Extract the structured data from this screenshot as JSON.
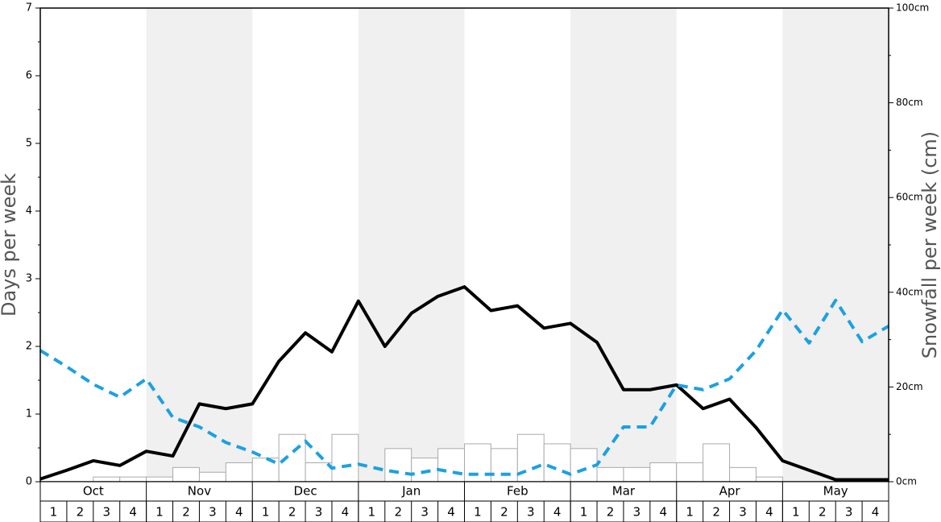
{
  "chart_data": {
    "type": "line",
    "y_label": "Days per week",
    "y2_label": "Snowfall per week (cm)",
    "months": [
      "Oct",
      "Nov",
      "Dec",
      "Jan",
      "Feb",
      "Mar",
      "Apr",
      "May"
    ],
    "categories": [
      "1",
      "2",
      "3",
      "4",
      "1",
      "2",
      "3",
      "4",
      "1",
      "2",
      "3",
      "4",
      "1",
      "2",
      "3",
      "4",
      "1",
      "2",
      "3",
      "4",
      "1",
      "2",
      "3",
      "4",
      "1",
      "2",
      "3",
      "4",
      "1",
      "2",
      "3",
      "4"
    ],
    "x": [
      0,
      1,
      2,
      3,
      4,
      5,
      6,
      7,
      8,
      9,
      10,
      11,
      12,
      13,
      14,
      15,
      16,
      17,
      18,
      19,
      20,
      21,
      22,
      23,
      24,
      25,
      26,
      27,
      28,
      29,
      30,
      31,
      32
    ],
    "xlim": [
      0,
      32
    ],
    "series": [
      {
        "color": "#000000",
        "style": "solid",
        "values": [
          0.04,
          0.17,
          0.31,
          0.24,
          0.45,
          0.38,
          1.15,
          1.08,
          1.15,
          1.78,
          2.2,
          1.92,
          2.67,
          2.0,
          2.49,
          2.74,
          2.88,
          2.53,
          2.6,
          2.27,
          2.34,
          2.06,
          1.36,
          1.36,
          1.43,
          1.08,
          1.22,
          0.8,
          0.31,
          0.17,
          0.03,
          0.03,
          0.03
        ]
      },
      {
        "color": "#1ba1e2",
        "style": "dashed",
        "values": [
          1.94,
          1.7,
          1.44,
          1.25,
          1.52,
          0.95,
          0.81,
          0.58,
          0.44,
          0.26,
          0.6,
          0.2,
          0.26,
          0.17,
          0.11,
          0.18,
          0.11,
          0.11,
          0.11,
          0.26,
          0.11,
          0.25,
          0.81,
          0.81,
          1.43,
          1.36,
          1.52,
          1.94,
          2.54,
          2.05,
          2.68,
          2.07,
          2.3
        ]
      }
    ],
    "bars": {
      "axis": "y2",
      "color": "#ffffff",
      "values": [
        0,
        0,
        1,
        1,
        1,
        3,
        2,
        4,
        5,
        10,
        4,
        10,
        0,
        7,
        5,
        7,
        8,
        7,
        10,
        8,
        7,
        3,
        3,
        4,
        4,
        8,
        3,
        1,
        0,
        0,
        0,
        0
      ]
    },
    "ylim": [
      0,
      7
    ],
    "yticks": [
      0,
      1,
      2,
      3,
      4,
      5,
      6,
      7
    ],
    "y2lim": [
      0,
      100
    ],
    "y2ticks": [
      {
        "value": 0,
        "label": "0cm"
      },
      {
        "value": 20,
        "label": "20cm"
      },
      {
        "value": 40,
        "label": "40cm"
      },
      {
        "value": 60,
        "label": "60cm"
      },
      {
        "value": 80,
        "label": "80cm"
      },
      {
        "value": 100,
        "label": "100cm"
      }
    ]
  }
}
